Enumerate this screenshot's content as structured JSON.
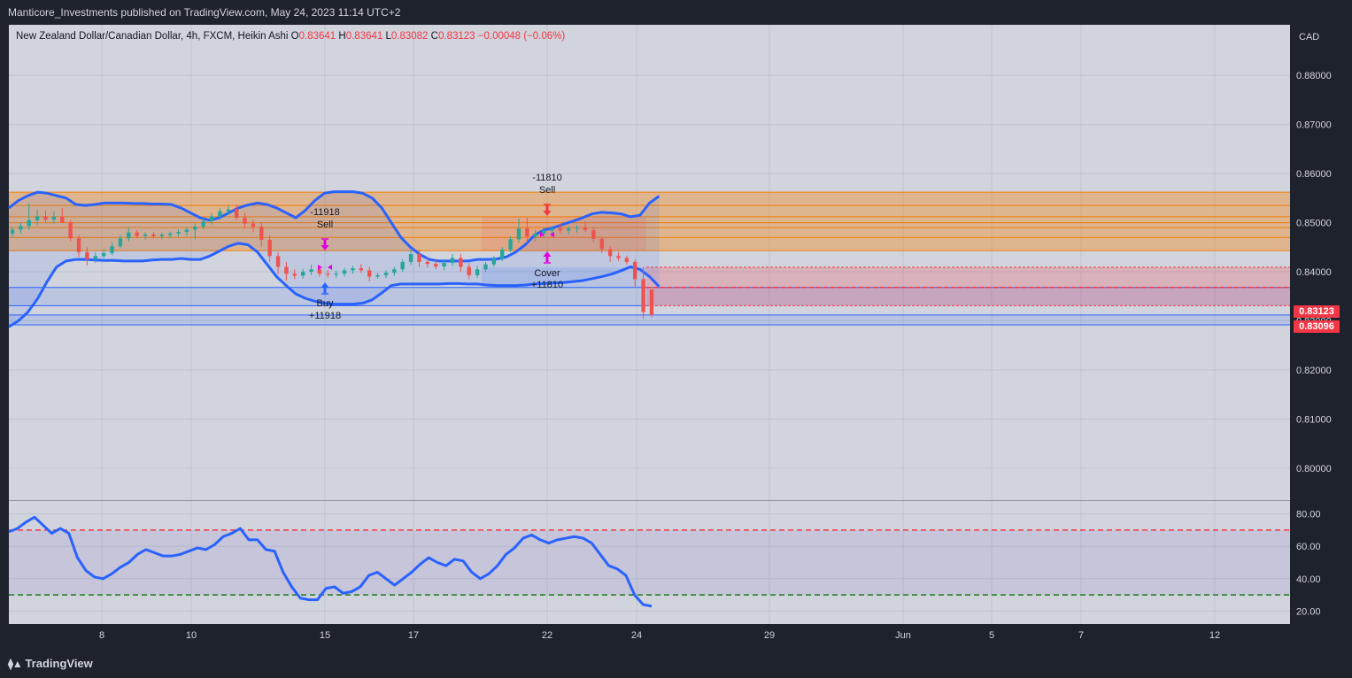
{
  "header": {
    "published_text": "Manticore_Investments published on TradingView.com, May 24, 2023 11:14 UTC+2"
  },
  "legend": {
    "symbol": "New Zealand Dollar/Canadian Dollar, 4h, FXCM, Heikin Ashi",
    "o_label": "O",
    "o_value": "0.83641",
    "h_label": "H",
    "h_value": "0.83641",
    "l_label": "L",
    "l_value": "0.83082",
    "c_label": "C",
    "c_value": "0.83123",
    "change": "−0.00048 (−0.06%)"
  },
  "price_axis": {
    "currency": "CAD",
    "ticks": [
      "0.88000",
      "0.87000",
      "0.86000",
      "0.85000",
      "0.84000",
      "0.83000",
      "0.82000",
      "0.81000",
      "0.80000"
    ]
  },
  "price_tags": {
    "last": "0.83123",
    "second": "0.83096"
  },
  "osc_axis": {
    "ticks": [
      "80.00",
      "60.00",
      "40.00",
      "20.00"
    ]
  },
  "time_axis": {
    "labels": [
      "8",
      "10",
      "15",
      "17",
      "22",
      "24",
      "29",
      "Jun",
      "5",
      "7",
      "12"
    ]
  },
  "annotations": {
    "sell1_value": "-11918",
    "sell1_label": "Sell",
    "buy1_label": "Buy",
    "buy1_value": "+11918",
    "sell2_value": "-11810",
    "sell2_label": "Sell",
    "cover_label": "Cover",
    "cover_value": "+11810"
  },
  "footer": {
    "brand": "TradingView"
  },
  "colors": {
    "up": "#26a69a",
    "down": "#ef5350",
    "band": "#2962ff",
    "zone_orange": "#f57c00",
    "zone_red": "#f23645",
    "zone_blue": "#2962ff"
  },
  "chart_data": [
    {
      "type": "candlestick",
      "style": "heikin-ashi",
      "title": "New Zealand Dollar/Canadian Dollar, 4h, FXCM, Heikin Ashi",
      "ylim": [
        0.7935,
        0.8903
      ],
      "last_close": 0.83123,
      "x_labels": [
        "8",
        "10",
        "15",
        "17",
        "22",
        "24",
        "29",
        "Jun",
        "5",
        "7",
        "12"
      ],
      "bollinger": {
        "upper": [
          0.853,
          0.8545,
          0.8555,
          0.8562,
          0.856,
          0.8555,
          0.855,
          0.8537,
          0.8535,
          0.8537,
          0.854,
          0.854,
          0.854,
          0.8539,
          0.8539,
          0.8538,
          0.8538,
          0.8537,
          0.853,
          0.852,
          0.851,
          0.8505,
          0.851,
          0.852,
          0.853,
          0.8536,
          0.854,
          0.8537,
          0.853,
          0.852,
          0.851,
          0.8525,
          0.8545,
          0.856,
          0.8563,
          0.8563,
          0.8563,
          0.856,
          0.855,
          0.853,
          0.85,
          0.847,
          0.845,
          0.8435,
          0.8425,
          0.8422,
          0.8422,
          0.8422,
          0.8422,
          0.8425,
          0.8425,
          0.8426,
          0.843,
          0.844,
          0.8455,
          0.8475,
          0.8485,
          0.849,
          0.8497,
          0.8503,
          0.851,
          0.8518,
          0.8521,
          0.852,
          0.8518,
          0.8512,
          0.8515,
          0.854,
          0.8554
        ],
        "lower": [
          0.8288,
          0.83,
          0.8318,
          0.8345,
          0.838,
          0.841,
          0.8422,
          0.8425,
          0.8425,
          0.8424,
          0.8423,
          0.8423,
          0.8422,
          0.8422,
          0.8422,
          0.8424,
          0.8425,
          0.8425,
          0.8427,
          0.8425,
          0.8425,
          0.8432,
          0.8442,
          0.8452,
          0.8458,
          0.8455,
          0.844,
          0.8415,
          0.839,
          0.8372,
          0.8355,
          0.8346,
          0.834,
          0.8336,
          0.8334,
          0.8334,
          0.8334,
          0.8336,
          0.8343,
          0.8357,
          0.8372,
          0.8375,
          0.8375,
          0.8375,
          0.8375,
          0.8375,
          0.8376,
          0.8376,
          0.8375,
          0.8375,
          0.8373,
          0.8372,
          0.8372,
          0.8372,
          0.8373,
          0.8375,
          0.8376,
          0.8377,
          0.8378,
          0.838,
          0.8382,
          0.8386,
          0.839,
          0.8395,
          0.8402,
          0.841,
          0.8405,
          0.839,
          0.837
        ]
      },
      "candles": [
        {
          "o": 0.8478,
          "h": 0.8492,
          "l": 0.847,
          "c": 0.8486
        },
        {
          "o": 0.8486,
          "h": 0.85,
          "l": 0.8478,
          "c": 0.8493
        },
        {
          "o": 0.8493,
          "h": 0.854,
          "l": 0.8485,
          "c": 0.8505
        },
        {
          "o": 0.8505,
          "h": 0.8527,
          "l": 0.8495,
          "c": 0.8513
        },
        {
          "o": 0.8513,
          "h": 0.8525,
          "l": 0.85,
          "c": 0.8506
        },
        {
          "o": 0.8506,
          "h": 0.8523,
          "l": 0.8498,
          "c": 0.8512
        },
        {
          "o": 0.8512,
          "h": 0.853,
          "l": 0.8505,
          "c": 0.85
        },
        {
          "o": 0.85,
          "h": 0.8505,
          "l": 0.8462,
          "c": 0.8468
        },
        {
          "o": 0.8468,
          "h": 0.8475,
          "l": 0.843,
          "c": 0.844
        },
        {
          "o": 0.844,
          "h": 0.845,
          "l": 0.8413,
          "c": 0.8425
        },
        {
          "o": 0.8425,
          "h": 0.844,
          "l": 0.8418,
          "c": 0.8432
        },
        {
          "o": 0.8432,
          "h": 0.8446,
          "l": 0.8428,
          "c": 0.8438
        },
        {
          "o": 0.8438,
          "h": 0.846,
          "l": 0.8434,
          "c": 0.8452
        },
        {
          "o": 0.8452,
          "h": 0.8475,
          "l": 0.8448,
          "c": 0.8468
        },
        {
          "o": 0.8468,
          "h": 0.849,
          "l": 0.8462,
          "c": 0.848
        },
        {
          "o": 0.848,
          "h": 0.8485,
          "l": 0.8468,
          "c": 0.8473
        },
        {
          "o": 0.8473,
          "h": 0.848,
          "l": 0.8466,
          "c": 0.8476
        },
        {
          "o": 0.8476,
          "h": 0.8481,
          "l": 0.8468,
          "c": 0.8472
        },
        {
          "o": 0.8472,
          "h": 0.848,
          "l": 0.8466,
          "c": 0.8475
        },
        {
          "o": 0.8475,
          "h": 0.8482,
          "l": 0.8469,
          "c": 0.8478
        },
        {
          "o": 0.8478,
          "h": 0.8486,
          "l": 0.8472,
          "c": 0.8481
        },
        {
          "o": 0.8481,
          "h": 0.849,
          "l": 0.8474,
          "c": 0.8486
        },
        {
          "o": 0.8486,
          "h": 0.8498,
          "l": 0.8466,
          "c": 0.8492
        },
        {
          "o": 0.8492,
          "h": 0.851,
          "l": 0.8486,
          "c": 0.8503
        },
        {
          "o": 0.8503,
          "h": 0.852,
          "l": 0.8496,
          "c": 0.8513
        },
        {
          "o": 0.8513,
          "h": 0.853,
          "l": 0.8506,
          "c": 0.8523
        },
        {
          "o": 0.8523,
          "h": 0.8535,
          "l": 0.8515,
          "c": 0.8527
        },
        {
          "o": 0.8527,
          "h": 0.8537,
          "l": 0.8505,
          "c": 0.851
        },
        {
          "o": 0.851,
          "h": 0.852,
          "l": 0.8488,
          "c": 0.8498
        },
        {
          "o": 0.8498,
          "h": 0.8506,
          "l": 0.848,
          "c": 0.8492
        },
        {
          "o": 0.8492,
          "h": 0.85,
          "l": 0.845,
          "c": 0.8465
        },
        {
          "o": 0.8465,
          "h": 0.8475,
          "l": 0.842,
          "c": 0.8432
        },
        {
          "o": 0.8432,
          "h": 0.844,
          "l": 0.8395,
          "c": 0.841
        },
        {
          "o": 0.841,
          "h": 0.842,
          "l": 0.8382,
          "c": 0.8396
        },
        {
          "o": 0.8396,
          "h": 0.8405,
          "l": 0.8385,
          "c": 0.8392
        },
        {
          "o": 0.8392,
          "h": 0.8406,
          "l": 0.8386,
          "c": 0.84
        },
        {
          "o": 0.84,
          "h": 0.8414,
          "l": 0.8393,
          "c": 0.8405
        },
        {
          "o": 0.8405,
          "h": 0.8412,
          "l": 0.839,
          "c": 0.8396
        },
        {
          "o": 0.8396,
          "h": 0.8404,
          "l": 0.8388,
          "c": 0.8394
        },
        {
          "o": 0.8394,
          "h": 0.8402,
          "l": 0.8388,
          "c": 0.8396
        },
        {
          "o": 0.8396,
          "h": 0.8408,
          "l": 0.839,
          "c": 0.8403
        },
        {
          "o": 0.8403,
          "h": 0.8412,
          "l": 0.8396,
          "c": 0.8407
        },
        {
          "o": 0.8407,
          "h": 0.8416,
          "l": 0.8398,
          "c": 0.8403
        },
        {
          "o": 0.8403,
          "h": 0.841,
          "l": 0.838,
          "c": 0.839
        },
        {
          "o": 0.839,
          "h": 0.8398,
          "l": 0.8386,
          "c": 0.8393
        },
        {
          "o": 0.8393,
          "h": 0.8403,
          "l": 0.8387,
          "c": 0.8398
        },
        {
          "o": 0.8398,
          "h": 0.841,
          "l": 0.8392,
          "c": 0.8405
        },
        {
          "o": 0.8405,
          "h": 0.8425,
          "l": 0.84,
          "c": 0.842
        },
        {
          "o": 0.842,
          "h": 0.8445,
          "l": 0.8414,
          "c": 0.8436
        },
        {
          "o": 0.8436,
          "h": 0.8445,
          "l": 0.841,
          "c": 0.842
        },
        {
          "o": 0.842,
          "h": 0.843,
          "l": 0.8408,
          "c": 0.8416
        },
        {
          "o": 0.8416,
          "h": 0.8425,
          "l": 0.8405,
          "c": 0.8411
        },
        {
          "o": 0.8411,
          "h": 0.8425,
          "l": 0.8403,
          "c": 0.8418
        },
        {
          "o": 0.8418,
          "h": 0.8436,
          "l": 0.8412,
          "c": 0.8428
        },
        {
          "o": 0.8428,
          "h": 0.8436,
          "l": 0.84,
          "c": 0.841
        },
        {
          "o": 0.841,
          "h": 0.8418,
          "l": 0.8385,
          "c": 0.8393
        },
        {
          "o": 0.8393,
          "h": 0.8412,
          "l": 0.8388,
          "c": 0.8405
        },
        {
          "o": 0.8405,
          "h": 0.842,
          "l": 0.84,
          "c": 0.8415
        },
        {
          "o": 0.8415,
          "h": 0.8432,
          "l": 0.841,
          "c": 0.8427
        },
        {
          "o": 0.8427,
          "h": 0.845,
          "l": 0.8422,
          "c": 0.8445
        },
        {
          "o": 0.8445,
          "h": 0.8472,
          "l": 0.844,
          "c": 0.8466
        },
        {
          "o": 0.8466,
          "h": 0.8508,
          "l": 0.846,
          "c": 0.8488
        },
        {
          "o": 0.8488,
          "h": 0.851,
          "l": 0.846,
          "c": 0.8472
        },
        {
          "o": 0.8472,
          "h": 0.8485,
          "l": 0.8462,
          "c": 0.8478
        },
        {
          "o": 0.8478,
          "h": 0.849,
          "l": 0.847,
          "c": 0.8484
        },
        {
          "o": 0.8484,
          "h": 0.8493,
          "l": 0.8476,
          "c": 0.8488
        },
        {
          "o": 0.8488,
          "h": 0.8498,
          "l": 0.8478,
          "c": 0.8484
        },
        {
          "o": 0.8484,
          "h": 0.8493,
          "l": 0.8476,
          "c": 0.8488
        },
        {
          "o": 0.8488,
          "h": 0.8495,
          "l": 0.848,
          "c": 0.849
        },
        {
          "o": 0.849,
          "h": 0.8502,
          "l": 0.8482,
          "c": 0.8485
        },
        {
          "o": 0.8485,
          "h": 0.849,
          "l": 0.846,
          "c": 0.8467
        },
        {
          "o": 0.8467,
          "h": 0.8472,
          "l": 0.8438,
          "c": 0.8446
        },
        {
          "o": 0.8446,
          "h": 0.8452,
          "l": 0.842,
          "c": 0.8432
        },
        {
          "o": 0.8432,
          "h": 0.844,
          "l": 0.8422,
          "c": 0.8428
        },
        {
          "o": 0.8428,
          "h": 0.8433,
          "l": 0.8415,
          "c": 0.842
        },
        {
          "o": 0.842,
          "h": 0.8425,
          "l": 0.837,
          "c": 0.8385
        },
        {
          "o": 0.8385,
          "h": 0.841,
          "l": 0.8305,
          "c": 0.8318
        },
        {
          "o": 0.8364,
          "h": 0.8364,
          "l": 0.8308,
          "c": 0.8312
        }
      ]
    },
    {
      "type": "line",
      "title": "",
      "ylim": [
        12,
        88
      ],
      "y_ticks": [
        80,
        60,
        40,
        20
      ],
      "hlines": [
        {
          "value": 70,
          "color": "#f23645"
        },
        {
          "value": 30,
          "color": "#1b7a1b"
        }
      ],
      "series": [
        {
          "values": [
            69,
            71,
            75,
            78,
            73,
            68,
            71,
            68,
            53,
            45,
            41,
            40,
            43,
            47,
            50,
            55,
            58,
            56,
            54,
            54,
            55,
            57,
            59,
            58,
            61,
            66,
            68,
            71,
            64,
            64,
            58,
            57,
            44,
            35,
            28,
            27,
            27,
            34,
            35,
            31,
            32,
            35,
            42,
            44,
            40,
            36,
            40,
            44,
            49,
            53,
            50,
            48,
            52,
            51,
            44,
            40,
            43,
            48,
            55,
            59,
            65,
            67,
            64,
            62,
            64,
            65,
            66,
            65,
            62,
            55,
            48,
            46,
            42,
            30,
            24,
            23
          ]
        }
      ]
    }
  ]
}
